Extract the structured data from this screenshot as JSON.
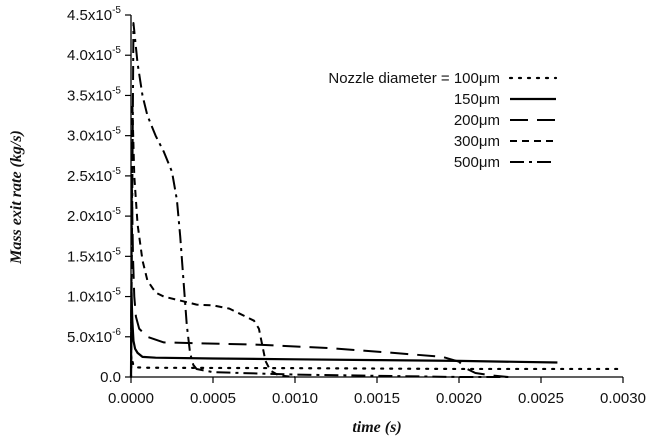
{
  "chart_data": {
    "type": "line",
    "xlabel": "time (s)",
    "ylabel": "Mass exit rate (kg/s)",
    "xlim": [
      0.0,
      0.003
    ],
    "ylim": [
      0.0,
      4.5e-05
    ],
    "x_ticks": [
      {
        "value": 0.0,
        "label": "0.0000"
      },
      {
        "value": 0.0005,
        "label": "0.0005"
      },
      {
        "value": 0.001,
        "label": "0.0010"
      },
      {
        "value": 0.0015,
        "label": "0.0015"
      },
      {
        "value": 0.002,
        "label": "0.0020"
      },
      {
        "value": 0.0025,
        "label": "0.0025"
      },
      {
        "value": 0.003,
        "label": "0.0030"
      }
    ],
    "y_ticks": [
      {
        "value": 0.0,
        "mantissa": "0.0",
        "exp": ""
      },
      {
        "value": 5e-06,
        "mantissa": "5.0x10",
        "exp": "-6"
      },
      {
        "value": 1e-05,
        "mantissa": "1.0x10",
        "exp": "-5"
      },
      {
        "value": 1.5e-05,
        "mantissa": "1.5x10",
        "exp": "-5"
      },
      {
        "value": 2e-05,
        "mantissa": "2.0x10",
        "exp": "-5"
      },
      {
        "value": 2.5e-05,
        "mantissa": "2.5x10",
        "exp": "-5"
      },
      {
        "value": 3e-05,
        "mantissa": "3.0x10",
        "exp": "-5"
      },
      {
        "value": 3.5e-05,
        "mantissa": "3.5x10",
        "exp": "-5"
      },
      {
        "value": 4e-05,
        "mantissa": "4.0x10",
        "exp": "-5"
      },
      {
        "value": 4.5e-05,
        "mantissa": "4.5x10",
        "exp": "-5"
      }
    ],
    "legend_position": "top-right",
    "series": [
      {
        "name": "Nozzle diameter = 100μm",
        "dash": "dotted",
        "points": [
          [
            0.0,
            0.0
          ],
          [
            2e-06,
            2.6e-06
          ],
          [
            6e-06,
            2.2e-06
          ],
          [
            1.5e-05,
            1.4e-06
          ],
          [
            3e-05,
            1.2e-06
          ],
          [
            0.0001,
            1.15e-06
          ],
          [
            0.001,
            1.1e-06
          ],
          [
            0.002,
            1e-06
          ],
          [
            0.003,
            1e-06
          ]
        ]
      },
      {
        "name": "150μm",
        "dash": "solid",
        "points": [
          [
            0.0,
            0.0
          ],
          [
            3e-06,
            1.05e-05
          ],
          [
            8e-06,
            7e-06
          ],
          [
            1.5e-05,
            4.5e-06
          ],
          [
            2.5e-05,
            3.5e-06
          ],
          [
            4e-05,
            3e-06
          ],
          [
            7e-05,
            2.5e-06
          ],
          [
            0.00015,
            2.4e-06
          ],
          [
            0.0005,
            2.3e-06
          ],
          [
            0.001,
            2.2e-06
          ],
          [
            0.0015,
            2.1e-06
          ],
          [
            0.002,
            2e-06
          ],
          [
            0.0026,
            1.8e-06
          ]
        ]
      },
      {
        "name": "200μm",
        "dash": "long-dash",
        "points": [
          [
            0.0,
            0.0
          ],
          [
            5e-06,
            2.4e-05
          ],
          [
            1.2e-05,
            1.5e-05
          ],
          [
            2e-05,
            1e-05
          ],
          [
            3e-05,
            7.5e-06
          ],
          [
            5e-05,
            6e-06
          ],
          [
            0.0001,
            5e-06
          ],
          [
            0.0002,
            4.3e-06
          ],
          [
            0.0004,
            4.2e-06
          ],
          [
            0.0008,
            4e-06
          ],
          [
            0.0012,
            3.6e-06
          ],
          [
            0.0016,
            3e-06
          ],
          [
            0.0019,
            2.5e-06
          ],
          [
            0.002,
            1.9e-06
          ],
          [
            0.00205,
            1e-06
          ],
          [
            0.0021,
            5e-07
          ],
          [
            0.0022,
            2e-07
          ],
          [
            0.0023,
            0.0
          ]
        ]
      },
      {
        "name": "300μm",
        "dash": "short-dash",
        "points": [
          [
            0.0,
            0.0
          ],
          [
            8e-06,
            3.4e-05
          ],
          [
            2e-05,
            2.5e-05
          ],
          [
            4e-05,
            1.9e-05
          ],
          [
            7e-05,
            1.45e-05
          ],
          [
            0.0001,
            1.2e-05
          ],
          [
            0.00015,
            1.05e-05
          ],
          [
            0.0002,
            1e-05
          ],
          [
            0.0003,
            9.5e-06
          ],
          [
            0.0004,
            9e-06
          ],
          [
            0.0005,
            8.9e-06
          ],
          [
            0.0006,
            8.5e-06
          ],
          [
            0.00065,
            8e-06
          ],
          [
            0.0007,
            7.5e-06
          ],
          [
            0.00075,
            7e-06
          ],
          [
            0.00078,
            6e-06
          ],
          [
            0.0008,
            4e-06
          ],
          [
            0.00082,
            2e-06
          ],
          [
            0.00085,
            8e-07
          ],
          [
            0.0009,
            2e-07
          ],
          [
            0.001,
            0.0
          ]
        ]
      },
      {
        "name": "500μm",
        "dash": "dash-dot",
        "points": [
          [
            0.0,
            0.0
          ],
          [
            1.5e-05,
            4.4e-05
          ],
          [
            4e-05,
            3.9e-05
          ],
          [
            7e-05,
            3.5e-05
          ],
          [
            0.0001,
            3.25e-05
          ],
          [
            0.00015,
            3e-05
          ],
          [
            0.0002,
            2.8e-05
          ],
          [
            0.00025,
            2.55e-05
          ],
          [
            0.00028,
            2.2e-05
          ],
          [
            0.0003,
            1.75e-05
          ],
          [
            0.00032,
            1.2e-05
          ],
          [
            0.00034,
            6.5e-06
          ],
          [
            0.00036,
            3e-06
          ],
          [
            0.00038,
            1.5e-06
          ],
          [
            0.0004,
            1e-06
          ],
          [
            0.0005,
            6e-07
          ],
          [
            0.001,
            3e-07
          ],
          [
            0.002,
            0.0
          ],
          [
            0.0023,
            0.0
          ]
        ]
      }
    ]
  }
}
